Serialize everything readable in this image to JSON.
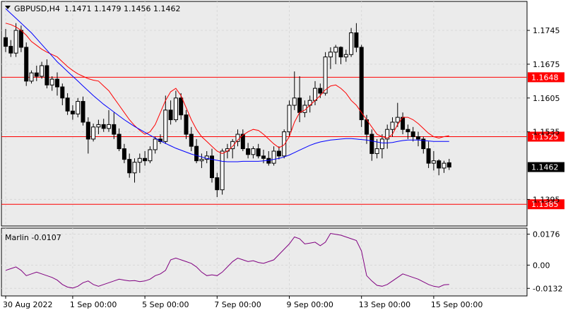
{
  "header": {
    "symbol": "GBPUSD,H4",
    "ohlc": "1.1471 1.1479 1.1456 1.1462"
  },
  "indicator": {
    "label": "Marlin -0.0107"
  },
  "colors": {
    "background": "#ffffff",
    "panel_background": "#ebebeb",
    "grid": "#d8d8d8",
    "candle_bull": "#ffffff",
    "candle_bear": "#000000",
    "candle_outline": "#000000",
    "horizontal_levels": "#ff0000",
    "fast_ma": "#ff0000",
    "slow_ma": "#0000ff",
    "oscillator": "#800080",
    "current_price_label": "#000000"
  },
  "chart_data": {
    "type": "candlestick",
    "instrument": "GBPUSD",
    "timeframe": "H4",
    "price_ylim": [
      1.134,
      1.1805
    ],
    "price_ticks": [
      "1.1745",
      "1.1675",
      "1.1605",
      "1.1535",
      "1.1395"
    ],
    "x_tick_labels": [
      "30 Aug 2022",
      "1 Sep 00:00",
      "5 Sep 00:00",
      "7 Sep 00:00",
      "9 Sep 00:00",
      "13 Sep 00:00",
      "15 Sep 00:00"
    ],
    "x_tick_bars": [
      0,
      13,
      27,
      41,
      55,
      69,
      83
    ],
    "horizontal_levels": [
      {
        "price": 1.1648,
        "label": "1.1648"
      },
      {
        "price": 1.1525,
        "label": "1.1525"
      },
      {
        "price": 1.1385,
        "label": "1.1385"
      }
    ],
    "current_price": {
      "price": 1.1462,
      "label": "1.1462"
    },
    "candles": [
      [
        1.173,
        1.1748,
        1.17,
        1.1712
      ],
      [
        1.1712,
        1.1725,
        1.169,
        1.1698
      ],
      [
        1.1698,
        1.176,
        1.169,
        1.1745
      ],
      [
        1.1745,
        1.1755,
        1.17,
        1.171
      ],
      [
        1.171,
        1.172,
        1.163,
        1.164
      ],
      [
        1.164,
        1.1662,
        1.1635,
        1.1657
      ],
      [
        1.1657,
        1.1672,
        1.164,
        1.165
      ],
      [
        1.165,
        1.168,
        1.1645,
        1.1672
      ],
      [
        1.1672,
        1.1685,
        1.1625,
        1.1632
      ],
      [
        1.1632,
        1.165,
        1.162,
        1.1644
      ],
      [
        1.1644,
        1.1658,
        1.161,
        1.1628
      ],
      [
        1.1628,
        1.1635,
        1.159,
        1.1605
      ],
      [
        1.1605,
        1.1615,
        1.157,
        1.1578
      ],
      [
        1.1578,
        1.159,
        1.156,
        1.1572
      ],
      [
        1.1572,
        1.1605,
        1.1565,
        1.1598
      ],
      [
        1.1598,
        1.1608,
        1.1548,
        1.1555
      ],
      [
        1.1555,
        1.1565,
        1.149,
        1.152
      ],
      [
        1.152,
        1.1552,
        1.1515,
        1.1545
      ],
      [
        1.1545,
        1.156,
        1.153,
        1.155
      ],
      [
        1.155,
        1.1562,
        1.1535,
        1.1542
      ],
      [
        1.1542,
        1.158,
        1.1535,
        1.155
      ],
      [
        1.155,
        1.1575,
        1.152,
        1.153
      ],
      [
        1.153,
        1.1542,
        1.1495,
        1.15
      ],
      [
        1.15,
        1.151,
        1.147,
        1.1478
      ],
      [
        1.1478,
        1.149,
        1.144,
        1.145
      ],
      [
        1.145,
        1.148,
        1.143,
        1.1472
      ],
      [
        1.1472,
        1.149,
        1.145,
        1.148
      ],
      [
        1.148,
        1.1495,
        1.1465,
        1.1475
      ],
      [
        1.1475,
        1.1505,
        1.147,
        1.1498
      ],
      [
        1.1498,
        1.1525,
        1.149,
        1.152
      ],
      [
        1.152,
        1.153,
        1.151,
        1.1515
      ],
      [
        1.1515,
        1.161,
        1.151,
        1.158
      ],
      [
        1.158,
        1.16,
        1.155,
        1.156
      ],
      [
        1.156,
        1.162,
        1.1555,
        1.1605
      ],
      [
        1.1605,
        1.1615,
        1.156,
        1.157
      ],
      [
        1.157,
        1.158,
        1.152,
        1.153
      ],
      [
        1.153,
        1.1545,
        1.1495,
        1.1505
      ],
      [
        1.1505,
        1.152,
        1.147,
        1.1475
      ],
      [
        1.1475,
        1.149,
        1.146,
        1.1478
      ],
      [
        1.1478,
        1.1495,
        1.147,
        1.1485
      ],
      [
        1.1485,
        1.15,
        1.143,
        1.144
      ],
      [
        1.144,
        1.145,
        1.14,
        1.1415
      ],
      [
        1.1415,
        1.15,
        1.1405,
        1.1495
      ],
      [
        1.1495,
        1.151,
        1.148,
        1.15
      ],
      [
        1.15,
        1.152,
        1.148,
        1.1515
      ],
      [
        1.1515,
        1.154,
        1.1505,
        1.153
      ],
      [
        1.153,
        1.154,
        1.1495,
        1.15
      ],
      [
        1.15,
        1.1512,
        1.148,
        1.1488
      ],
      [
        1.1488,
        1.1505,
        1.148,
        1.15
      ],
      [
        1.15,
        1.151,
        1.148,
        1.1485
      ],
      [
        1.1485,
        1.1498,
        1.147,
        1.148
      ],
      [
        1.148,
        1.1495,
        1.1465,
        1.147
      ],
      [
        1.147,
        1.1505,
        1.1465,
        1.1495
      ],
      [
        1.1495,
        1.1505,
        1.1478,
        1.1485
      ],
      [
        1.1485,
        1.154,
        1.148,
        1.1535
      ],
      [
        1.1535,
        1.16,
        1.1525,
        1.159
      ],
      [
        1.159,
        1.166,
        1.158,
        1.1605
      ],
      [
        1.1605,
        1.165,
        1.1555,
        1.1575
      ],
      [
        1.1575,
        1.16,
        1.1565,
        1.159
      ],
      [
        1.159,
        1.161,
        1.1575,
        1.16
      ],
      [
        1.16,
        1.164,
        1.159,
        1.1625
      ],
      [
        1.1625,
        1.1635,
        1.1605,
        1.1615
      ],
      [
        1.1615,
        1.17,
        1.161,
        1.169
      ],
      [
        1.169,
        1.171,
        1.1665,
        1.17
      ],
      [
        1.17,
        1.1715,
        1.1675,
        1.171
      ],
      [
        1.171,
        1.1712,
        1.1675,
        1.169
      ],
      [
        1.169,
        1.1705,
        1.168,
        1.1695
      ],
      [
        1.1695,
        1.175,
        1.169,
        1.174
      ],
      [
        1.174,
        1.176,
        1.17,
        1.171
      ],
      [
        1.171,
        1.1715,
        1.1545,
        1.156
      ],
      [
        1.156,
        1.157,
        1.151,
        1.153
      ],
      [
        1.153,
        1.154,
        1.1475,
        1.149
      ],
      [
        1.149,
        1.152,
        1.148,
        1.15
      ],
      [
        1.15,
        1.153,
        1.148,
        1.152
      ],
      [
        1.152,
        1.155,
        1.15,
        1.154
      ],
      [
        1.154,
        1.1565,
        1.1525,
        1.1555
      ],
      [
        1.1555,
        1.1595,
        1.1545,
        1.1565
      ],
      [
        1.1565,
        1.1575,
        1.153,
        1.154
      ],
      [
        1.154,
        1.155,
        1.152,
        1.1535
      ],
      [
        1.1535,
        1.1545,
        1.1515,
        1.1525
      ],
      [
        1.1525,
        1.1535,
        1.1505,
        1.152
      ],
      [
        1.152,
        1.1525,
        1.149,
        1.15
      ],
      [
        1.15,
        1.1515,
        1.146,
        1.147
      ],
      [
        1.147,
        1.1495,
        1.1455,
        1.1475
      ],
      [
        1.1475,
        1.1478,
        1.1445,
        1.146
      ],
      [
        1.146,
        1.1475,
        1.145,
        1.147
      ],
      [
        1.1471,
        1.1479,
        1.1456,
        1.1462
      ]
    ],
    "fast_ma": [
      1.176,
      1.1757,
      1.1752,
      1.1745,
      1.1735,
      1.1722,
      1.1714,
      1.1706,
      1.17,
      1.1695,
      1.169,
      1.168,
      1.167,
      1.1662,
      1.1655,
      1.165,
      1.1645,
      1.1642,
      1.164,
      1.163,
      1.162,
      1.1605,
      1.159,
      1.1575,
      1.156,
      1.1548,
      1.1538,
      1.153,
      1.1535,
      1.155,
      1.1575,
      1.16,
      1.1618,
      1.1625,
      1.161,
      1.1585,
      1.156,
      1.154,
      1.1525,
      1.1515,
      1.1505,
      1.1495,
      1.149,
      1.1495,
      1.1505,
      1.1518,
      1.1528,
      1.1535,
      1.154,
      1.1538,
      1.153,
      1.152,
      1.151,
      1.1502,
      1.1508,
      1.1525,
      1.1555,
      1.1575,
      1.158,
      1.159,
      1.16,
      1.161,
      1.1622,
      1.163,
      1.1632,
      1.1625,
      1.1615,
      1.16,
      1.159,
      1.1575,
      1.156,
      1.1545,
      1.153,
      1.1525,
      1.1522,
      1.153,
      1.155,
      1.1565,
      1.1565,
      1.156,
      1.1552,
      1.1542,
      1.1532,
      1.1525,
      1.1522,
      1.1525,
      1.1527
    ],
    "slow_ma": [
      1.179,
      1.178,
      1.177,
      1.176,
      1.175,
      1.174,
      1.1728,
      1.1716,
      1.1704,
      1.1692,
      1.168,
      1.167,
      1.166,
      1.165,
      1.164,
      1.163,
      1.162,
      1.161,
      1.1601,
      1.1592,
      1.1584,
      1.1576,
      1.1568,
      1.156,
      1.1553,
      1.1546,
      1.154,
      1.1534,
      1.1528,
      1.1522,
      1.1516,
      1.1511,
      1.1506,
      1.1501,
      1.1497,
      1.1493,
      1.1489,
      1.1486,
      1.1483,
      1.148,
      1.1478,
      1.1476,
      1.1474,
      1.1473,
      1.1473,
      1.1473,
      1.1474,
      1.1474,
      1.1474,
      1.1474,
      1.1475,
      1.1476,
      1.1478,
      1.148,
      1.1483,
      1.1487,
      1.1492,
      1.1497,
      1.1502,
      1.1507,
      1.1511,
      1.1514,
      1.1516,
      1.1518,
      1.1519,
      1.152,
      1.1521,
      1.1521,
      1.152,
      1.1519,
      1.1518,
      1.1516,
      1.1514,
      1.1512,
      1.1512,
      1.1513,
      1.1515,
      1.1517,
      1.1518,
      1.1518,
      1.1518,
      1.1517,
      1.1516,
      1.1515,
      1.1515,
      1.1515,
      1.1515
    ],
    "oscillator": {
      "name": "Marlin",
      "current": -0.0107,
      "ylim": [
        -0.0175,
        0.021
      ],
      "ticks": [
        "0.0176",
        "0.00",
        "-0.0132"
      ],
      "values": [
        -0.003,
        -0.002,
        -0.001,
        -0.003,
        -0.006,
        -0.005,
        -0.004,
        -0.005,
        -0.006,
        -0.007,
        -0.0085,
        -0.011,
        -0.0125,
        -0.013,
        -0.012,
        -0.01,
        -0.009,
        -0.011,
        -0.012,
        -0.011,
        -0.01,
        -0.009,
        -0.008,
        -0.0085,
        -0.009,
        -0.0088,
        -0.0094,
        -0.009,
        -0.008,
        -0.006,
        -0.005,
        -0.003,
        0.003,
        0.004,
        0.003,
        0.002,
        0.001,
        -0.001,
        -0.004,
        -0.006,
        -0.0055,
        -0.006,
        -0.004,
        -0.001,
        0.002,
        0.004,
        0.003,
        0.002,
        0.0025,
        0.0015,
        0.001,
        0.002,
        0.003,
        0.006,
        0.009,
        0.012,
        0.016,
        0.015,
        0.012,
        0.0125,
        0.013,
        0.011,
        0.013,
        0.018,
        0.0175,
        0.017,
        0.016,
        0.015,
        0.014,
        0.008,
        -0.006,
        -0.009,
        -0.0115,
        -0.012,
        -0.011,
        -0.009,
        -0.007,
        -0.005,
        -0.006,
        -0.007,
        -0.008,
        -0.0095,
        -0.011,
        -0.012,
        -0.0125,
        -0.0112,
        -0.011
      ]
    }
  }
}
